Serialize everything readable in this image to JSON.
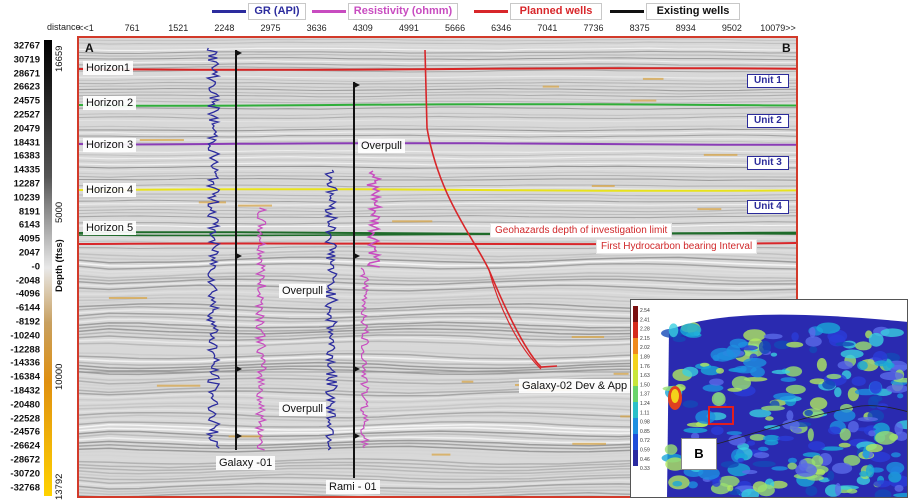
{
  "legend": [
    {
      "label": "GR (API)",
      "color": "#2c2c9e"
    },
    {
      "label": "Resistivity (ohmm)",
      "color": "#c84cc0"
    },
    {
      "label": "Planned wells",
      "color": "#d8262a"
    },
    {
      "label": "Existing wells",
      "color": "#111111"
    }
  ],
  "distance_axis": {
    "label": "distance",
    "ticks": [
      "<<1",
      "761",
      "1521",
      "2248",
      "2975",
      "3636",
      "4309",
      "4991",
      "5666",
      "6346",
      "7041",
      "7736",
      "8375",
      "8934",
      "9502",
      "10079>>"
    ]
  },
  "colorbar": {
    "labels": [
      "32767",
      "30719",
      "28671",
      "26623",
      "24575",
      "22527",
      "20479",
      "18431",
      "16383",
      "14335",
      "12287",
      "10239",
      "8191",
      "6143",
      "4095",
      "2047",
      "-0",
      "-2048",
      "-4096",
      "-6144",
      "-8192",
      "-10240",
      "-12288",
      "-14336",
      "-16384",
      "-18432",
      "-20480",
      "-22528",
      "-24576",
      "-26624",
      "-28672",
      "-30720",
      "-32768"
    ]
  },
  "depth_axis": {
    "title": "Depth (ftss)",
    "ticks": [
      "16659",
      "5000",
      "10000",
      "13792"
    ]
  },
  "section": {
    "corner_left": "A",
    "corner_right": "B",
    "horizons": [
      {
        "label": "Horizon1",
        "color": "#d82424"
      },
      {
        "label": "Horizon 2",
        "color": "#2fae3a"
      },
      {
        "label": "Horizon 3",
        "color": "#8a3cb6"
      },
      {
        "label": "Horizon 4",
        "color": "#e8e21c"
      },
      {
        "label": "Horizon 5",
        "color": "#1f6b2a"
      }
    ],
    "units": [
      "Unit 1",
      "Unit 2",
      "Unit 3",
      "Unit 4"
    ],
    "annotations": {
      "overpull": "Overpull",
      "geohazards": "Geohazards depth of investigation limit",
      "first_hc": "First Hydrocarbon bearing Interval",
      "planned_well": "Galaxy-02 Dev & App"
    },
    "wells": {
      "galaxy": "Galaxy -01",
      "rami": "Rami - 01"
    }
  },
  "inset": {
    "label": "B",
    "scale": [
      "2.54",
      "2.41",
      "2.28",
      "2.15",
      "2.02",
      "1.89",
      "1.76",
      "1.63",
      "1.50",
      "1.37",
      "1.24",
      "1.11",
      "0.98",
      "0.85",
      "0.72",
      "0.59",
      "0.46",
      "0.33"
    ]
  }
}
